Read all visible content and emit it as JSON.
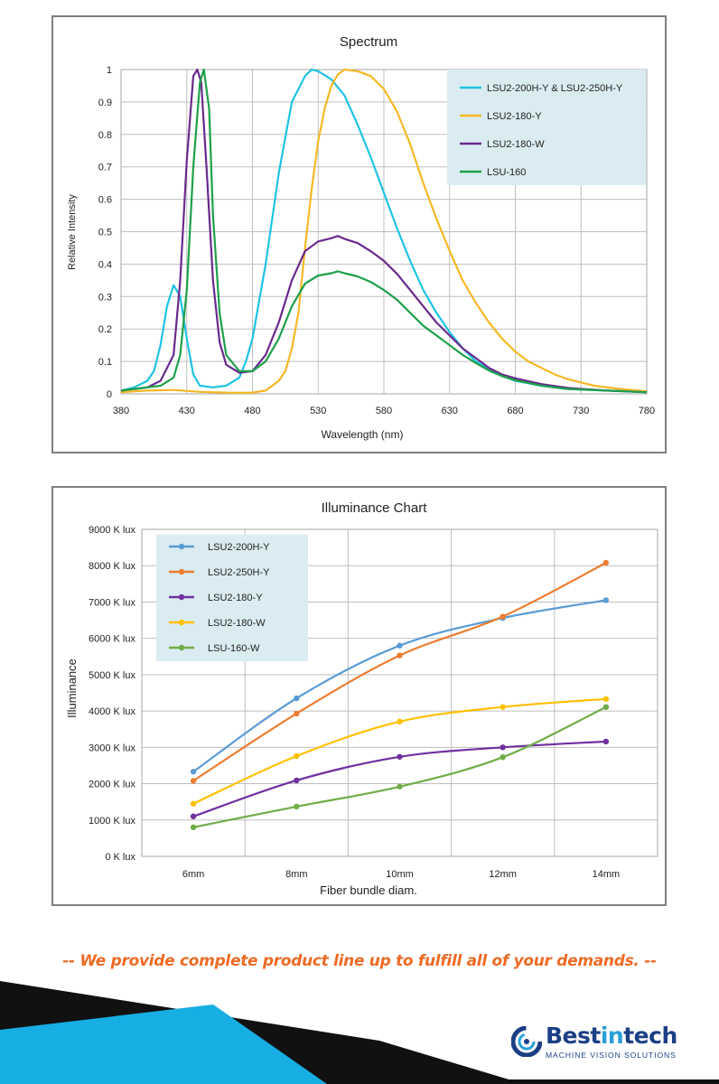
{
  "chart_data": [
    {
      "type": "line",
      "title": "Spectrum",
      "xlabel": "Wavelength (nm)",
      "ylabel": "Relative Intensity",
      "xlim": [
        380,
        780
      ],
      "ylim": [
        0,
        1
      ],
      "x_ticks": [
        "380",
        "430",
        "480",
        "530",
        "580",
        "630",
        "680",
        "730",
        "780"
      ],
      "y_ticks": [
        "0",
        "0.1",
        "0.2",
        "0.3",
        "0.4",
        "0.5",
        "0.6",
        "0.7",
        "0.8",
        "0.9",
        "1"
      ],
      "grid": true,
      "legend_position": "top-right",
      "series": [
        {
          "name": "LSU2-200H-Y & LSU2-250H-Y",
          "color": "#1fc3e3",
          "points": [
            [
              380,
              0.01
            ],
            [
              390,
              0.02
            ],
            [
              400,
              0.04
            ],
            [
              405,
              0.07
            ],
            [
              410,
              0.15
            ],
            [
              415,
              0.27
            ],
            [
              420,
              0.335
            ],
            [
              425,
              0.3
            ],
            [
              430,
              0.17
            ],
            [
              435,
              0.06
            ],
            [
              440,
              0.025
            ],
            [
              450,
              0.02
            ],
            [
              460,
              0.025
            ],
            [
              470,
              0.05
            ],
            [
              475,
              0.1
            ],
            [
              480,
              0.17
            ],
            [
              490,
              0.4
            ],
            [
              500,
              0.68
            ],
            [
              510,
              0.9
            ],
            [
              520,
              0.98
            ],
            [
              525,
              1.0
            ],
            [
              530,
              0.995
            ],
            [
              540,
              0.97
            ],
            [
              550,
              0.92
            ],
            [
              560,
              0.83
            ],
            [
              570,
              0.73
            ],
            [
              580,
              0.62
            ],
            [
              590,
              0.51
            ],
            [
              600,
              0.41
            ],
            [
              610,
              0.32
            ],
            [
              620,
              0.25
            ],
            [
              630,
              0.19
            ],
            [
              640,
              0.14
            ],
            [
              650,
              0.1
            ],
            [
              660,
              0.075
            ],
            [
              670,
              0.055
            ],
            [
              680,
              0.04
            ],
            [
              700,
              0.025
            ],
            [
              720,
              0.015
            ],
            [
              750,
              0.01
            ],
            [
              780,
              0.005
            ]
          ]
        },
        {
          "name": "LSU2-180-Y",
          "color": "#f5b825",
          "points": [
            [
              380,
              0.005
            ],
            [
              400,
              0.01
            ],
            [
              420,
              0.012
            ],
            [
              440,
              0.006
            ],
            [
              460,
              0.004
            ],
            [
              470,
              0.003
            ],
            [
              480,
              0.004
            ],
            [
              490,
              0.01
            ],
            [
              500,
              0.04
            ],
            [
              505,
              0.07
            ],
            [
              510,
              0.14
            ],
            [
              515,
              0.25
            ],
            [
              520,
              0.45
            ],
            [
              525,
              0.63
            ],
            [
              530,
              0.78
            ],
            [
              535,
              0.88
            ],
            [
              540,
              0.95
            ],
            [
              545,
              0.985
            ],
            [
              550,
              1.0
            ],
            [
              560,
              0.995
            ],
            [
              570,
              0.98
            ],
            [
              580,
              0.94
            ],
            [
              590,
              0.87
            ],
            [
              600,
              0.77
            ],
            [
              610,
              0.65
            ],
            [
              620,
              0.54
            ],
            [
              630,
              0.44
            ],
            [
              640,
              0.35
            ],
            [
              650,
              0.28
            ],
            [
              660,
              0.22
            ],
            [
              670,
              0.17
            ],
            [
              680,
              0.13
            ],
            [
              690,
              0.1
            ],
            [
              700,
              0.08
            ],
            [
              710,
              0.06
            ],
            [
              720,
              0.045
            ],
            [
              730,
              0.035
            ],
            [
              740,
              0.025
            ],
            [
              760,
              0.015
            ],
            [
              780,
              0.008
            ]
          ]
        },
        {
          "name": "LSU2-180-W",
          "color": "#6a2a8c",
          "points": [
            [
              380,
              0.01
            ],
            [
              390,
              0.015
            ],
            [
              400,
              0.02
            ],
            [
              410,
              0.04
            ],
            [
              420,
              0.12
            ],
            [
              425,
              0.35
            ],
            [
              430,
              0.72
            ],
            [
              435,
              0.98
            ],
            [
              438,
              1.0
            ],
            [
              441,
              0.96
            ],
            [
              445,
              0.7
            ],
            [
              450,
              0.35
            ],
            [
              455,
              0.16
            ],
            [
              460,
              0.09
            ],
            [
              470,
              0.065
            ],
            [
              480,
              0.07
            ],
            [
              490,
              0.12
            ],
            [
              500,
              0.22
            ],
            [
              510,
              0.35
            ],
            [
              520,
              0.44
            ],
            [
              530,
              0.47
            ],
            [
              540,
              0.48
            ],
            [
              545,
              0.487
            ],
            [
              550,
              0.478
            ],
            [
              560,
              0.465
            ],
            [
              570,
              0.44
            ],
            [
              580,
              0.41
            ],
            [
              590,
              0.37
            ],
            [
              600,
              0.32
            ],
            [
              610,
              0.27
            ],
            [
              620,
              0.22
            ],
            [
              630,
              0.18
            ],
            [
              640,
              0.14
            ],
            [
              650,
              0.11
            ],
            [
              660,
              0.08
            ],
            [
              670,
              0.06
            ],
            [
              680,
              0.048
            ],
            [
              700,
              0.03
            ],
            [
              720,
              0.018
            ],
            [
              750,
              0.01
            ],
            [
              780,
              0.005
            ]
          ]
        },
        {
          "name": "LSU-160",
          "color": "#1ea04a",
          "points": [
            [
              380,
              0.01
            ],
            [
              390,
              0.015
            ],
            [
              400,
              0.02
            ],
            [
              410,
              0.025
            ],
            [
              420,
              0.05
            ],
            [
              425,
              0.12
            ],
            [
              430,
              0.32
            ],
            [
              435,
              0.7
            ],
            [
              440,
              0.96
            ],
            [
              443,
              1.0
            ],
            [
              447,
              0.88
            ],
            [
              450,
              0.55
            ],
            [
              455,
              0.25
            ],
            [
              460,
              0.12
            ],
            [
              470,
              0.07
            ],
            [
              480,
              0.07
            ],
            [
              490,
              0.1
            ],
            [
              500,
              0.17
            ],
            [
              510,
              0.27
            ],
            [
              520,
              0.34
            ],
            [
              530,
              0.365
            ],
            [
              540,
              0.372
            ],
            [
              545,
              0.378
            ],
            [
              550,
              0.372
            ],
            [
              560,
              0.362
            ],
            [
              570,
              0.345
            ],
            [
              580,
              0.32
            ],
            [
              590,
              0.29
            ],
            [
              600,
              0.25
            ],
            [
              610,
              0.21
            ],
            [
              620,
              0.18
            ],
            [
              630,
              0.15
            ],
            [
              640,
              0.12
            ],
            [
              650,
              0.095
            ],
            [
              660,
              0.072
            ],
            [
              670,
              0.055
            ],
            [
              680,
              0.042
            ],
            [
              700,
              0.025
            ],
            [
              720,
              0.015
            ],
            [
              750,
              0.01
            ],
            [
              780,
              0.005
            ]
          ]
        }
      ]
    },
    {
      "type": "line",
      "title": "Illuminance Chart",
      "xlabel": "Fiber bundle diam.",
      "ylabel": "Illuminance",
      "categories": [
        "6mm",
        "8mm",
        "10mm",
        "12mm",
        "14mm"
      ],
      "ylim": [
        0,
        9000
      ],
      "y_ticks": [
        "0 K lux",
        "1000 K lux",
        "2000 K lux",
        "3000 K lux",
        "4000 K lux",
        "5000 K lux",
        "6000 K lux",
        "7000 K lux",
        "8000 K lux",
        "9000 K lux"
      ],
      "grid": true,
      "legend_position": "top-left",
      "series": [
        {
          "name": "LSU2-200H-Y",
          "color": "#5b9bd5",
          "values": [
            2330,
            4350,
            5800,
            6560,
            7050
          ]
        },
        {
          "name": "LSU2-250H-Y",
          "color": "#ed7d31",
          "values": [
            2080,
            3930,
            5530,
            6600,
            8080
          ]
        },
        {
          "name": "LSU2-180-Y",
          "color": "#7030a0",
          "values": [
            1100,
            2090,
            2740,
            3000,
            3160
          ]
        },
        {
          "name": "LSU2-180-W",
          "color": "#ffc000",
          "values": [
            1450,
            2760,
            3710,
            4110,
            4330
          ]
        },
        {
          "name": "LSU-160-W",
          "color": "#70ad47",
          "values": [
            800,
            1370,
            1920,
            2730,
            4110
          ]
        }
      ]
    }
  ],
  "tagline": "-- We provide complete product line up to fulfill all of your demands.  --",
  "logo": {
    "name_part1": "Best",
    "name_part2": "in",
    "name_part3": "tech",
    "subtitle": "MACHINE VISION SOLUTIONS"
  }
}
